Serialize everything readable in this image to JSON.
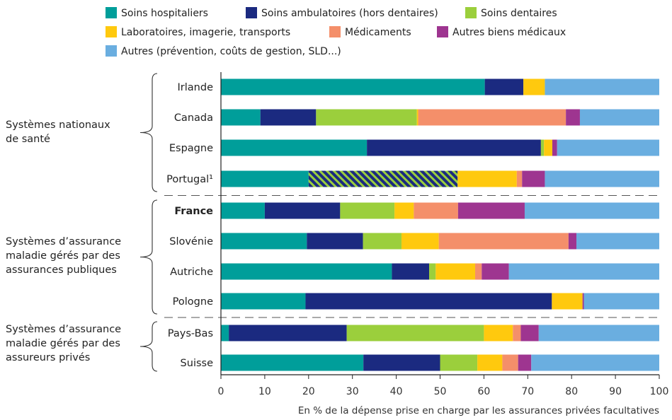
{
  "chart_data": {
    "type": "bar",
    "orientation": "horizontal",
    "stacked": true,
    "xlabel": "En % de la dépense prise en charge par les assurances privées facultatives",
    "xlim": [
      0,
      100
    ],
    "xticks": [
      0,
      10,
      20,
      30,
      40,
      50,
      60,
      70,
      80,
      90,
      100
    ],
    "legend_position": "top",
    "categories": [
      "Irlande",
      "Canada",
      "Espagne",
      "Portugal¹",
      "France",
      "Slovénie",
      "Autriche",
      "Pologne",
      "Pays-Bas",
      "Suisse"
    ],
    "highlighted_category": "France",
    "groups": [
      {
        "label": [
          "Systèmes nationaux",
          "de santé"
        ],
        "members": [
          "Irlande",
          "Canada",
          "Espagne",
          "Portugal¹"
        ]
      },
      {
        "label": [
          "Systèmes d’assurance",
          "maladie gérés par des",
          "assurances publiques"
        ],
        "members": [
          "France",
          "Slovénie",
          "Autriche",
          "Pologne"
        ]
      },
      {
        "label": [
          "Systèmes d’assurance",
          "maladie gérés par des",
          "assureurs privés"
        ],
        "members": [
          "Pays-Bas",
          "Suisse"
        ]
      }
    ],
    "series": [
      {
        "name": "Soins hospitaliers",
        "color": "#009e9a",
        "values": [
          60.2,
          9.0,
          33.3,
          20.0,
          10.0,
          19.6,
          39.0,
          19.3,
          1.8,
          32.5
        ]
      },
      {
        "name": "Soins ambulatoires (hors dentaires)",
        "color": "#1b2a80",
        "values": [
          8.8,
          12.7,
          39.7,
          34.0,
          17.2,
          12.8,
          8.5,
          56.2,
          26.9,
          17.5
        ]
      },
      {
        "name": "Soins dentaires",
        "color": "#9bcf3c",
        "values": [
          0.0,
          23.0,
          0.7,
          0.0,
          12.4,
          8.8,
          1.5,
          0.0,
          31.3,
          8.5
        ]
      },
      {
        "name": "Laboratoires, imagerie, transports",
        "color": "#ffc90e",
        "values": [
          4.9,
          0.3,
          1.9,
          13.5,
          4.4,
          8.5,
          9.0,
          7.0,
          6.6,
          5.7
        ]
      },
      {
        "name": "Médicaments",
        "color": "#f48f6a",
        "values": [
          0.0,
          33.7,
          0.0,
          1.2,
          10.1,
          29.6,
          1.5,
          0.0,
          1.8,
          3.6
        ]
      },
      {
        "name": "Autres biens médicaux",
        "color": "#9e3590",
        "values": [
          0.0,
          3.2,
          1.1,
          5.2,
          15.2,
          1.8,
          6.2,
          0.3,
          4.1,
          3.0
        ]
      },
      {
        "name": "Autres (prévention, coûts de gestion, SLD...)",
        "color": "#6aaee0",
        "values": [
          26.1,
          18.1,
          23.3,
          26.1,
          30.7,
          18.9,
          34.3,
          17.2,
          27.5,
          29.2
        ]
      }
    ],
    "hatched": {
      "category": "Portugal¹",
      "series": "Soins ambulatoires (hors dentaires)",
      "hatch_color": "#9bcf3c"
    }
  }
}
